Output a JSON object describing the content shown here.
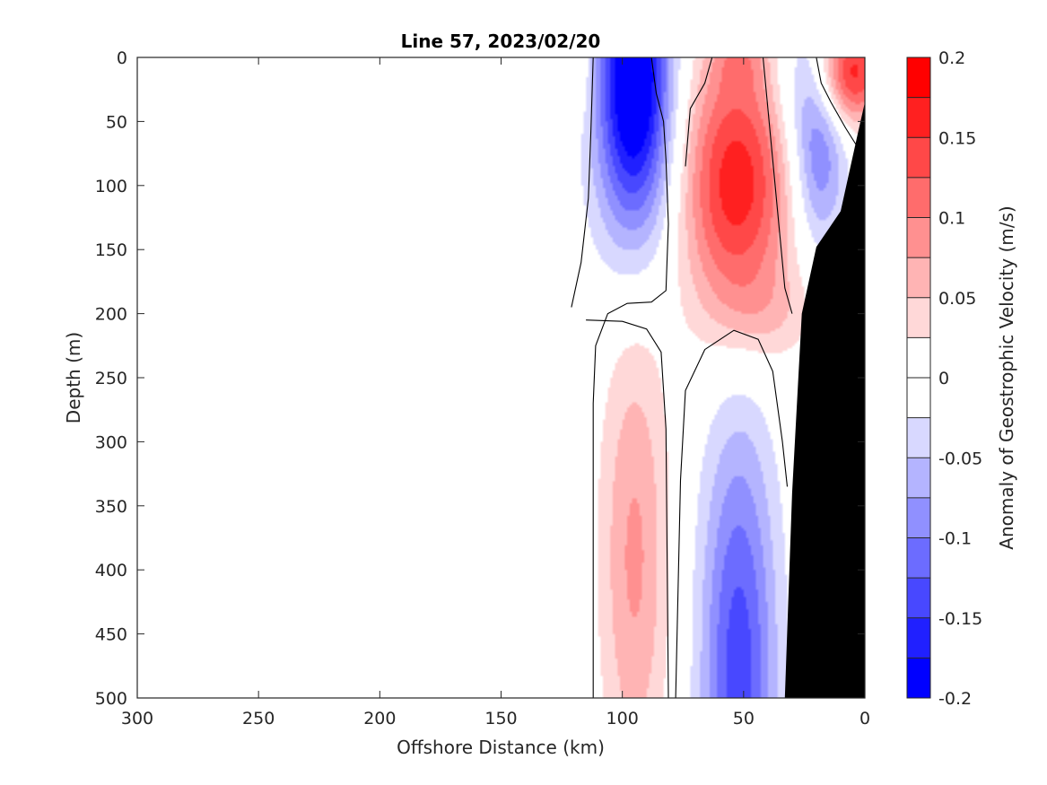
{
  "chart_data": {
    "type": "contour",
    "title": "Line 57, 2023/02/20",
    "xlabel": "Offshore Distance (km)",
    "ylabel": "Depth (m)",
    "xlim": [
      300,
      0
    ],
    "ylim": [
      500,
      0
    ],
    "x_reversed": true,
    "y_reversed": true,
    "x_ticks": [
      300,
      250,
      200,
      150,
      100,
      50,
      0
    ],
    "y_ticks": [
      0,
      50,
      100,
      150,
      200,
      250,
      300,
      350,
      400,
      450,
      500
    ],
    "colorbar": {
      "label": "Anomaly of Geostrophic Velocity (m/s)",
      "range": [
        -0.2,
        0.2
      ],
      "tick_values": [
        0.2,
        0.15,
        0.1,
        0.05,
        0,
        -0.05,
        -0.1,
        -0.15,
        -0.2
      ],
      "tick_labels": [
        "0.2",
        "0.15",
        "0.1",
        "0.05",
        "0",
        "-0.05",
        "-0.1",
        "-0.15",
        "-0.2"
      ],
      "levels": [
        -0.2,
        -0.175,
        -0.15,
        -0.125,
        -0.1,
        -0.075,
        -0.05,
        -0.025,
        0,
        0.025,
        0.05,
        0.075,
        0.1,
        0.125,
        0.15,
        0.175,
        0.2
      ],
      "colors": [
        "#0000ff",
        "#2020ff",
        "#4848ff",
        "#6c6cff",
        "#9090ff",
        "#b4b4ff",
        "#d8d8ff",
        "#ffffff",
        "#ffffff",
        "#ffd8d8",
        "#ffb4b4",
        "#ff9090",
        "#ff6c6c",
        "#ff4848",
        "#ff2020",
        "#ff0000"
      ]
    },
    "features": [
      {
        "sign": "neg",
        "x": 95,
        "y": 0,
        "sx": 10,
        "sy": 75,
        "v": -0.18
      },
      {
        "sign": "neg",
        "x": 95,
        "y": 70,
        "sx": 13,
        "sy": 75,
        "v": -0.08
      },
      {
        "sign": "pos",
        "x": 53,
        "y": 100,
        "sx": 16,
        "sy": 75,
        "v": 0.17
      },
      {
        "sign": "pos",
        "x": 52,
        "y": 0,
        "sx": 8,
        "sy": 18,
        "v": 0.04
      },
      {
        "sign": "pos",
        "x": 5,
        "y": 12,
        "sx": 9,
        "sy": 28,
        "v": 0.16
      },
      {
        "sign": "neg",
        "x": 19,
        "y": 80,
        "sx": 8,
        "sy": 50,
        "v": -0.1
      },
      {
        "sign": "neg",
        "x": 28,
        "y": 20,
        "sx": 8,
        "sy": 40,
        "v": -0.04
      },
      {
        "sign": "pos",
        "x": 117,
        "y": 10,
        "sx": 3,
        "sy": 30,
        "v": 0.03
      },
      {
        "sign": "pos",
        "x": 95,
        "y": 390,
        "sx": 10,
        "sy": 130,
        "v": 0.08
      },
      {
        "sign": "neg",
        "x": 52,
        "y": 480,
        "sx": 11,
        "sy": 140,
        "v": -0.14
      },
      {
        "sign": "pos",
        "x": 40,
        "y": 200,
        "sx": 15,
        "sy": 25,
        "v": 0.03
      },
      {
        "sign": "neg",
        "x": 118,
        "y": 470,
        "sx": 2,
        "sy": 50,
        "v": -0.03
      }
    ],
    "zero_contours": [
      [
        [
          121,
          195
        ],
        [
          117,
          160
        ],
        [
          114,
          110
        ],
        [
          113,
          60
        ],
        [
          112,
          0
        ]
      ],
      [
        [
          112,
          500
        ],
        [
          112,
          270
        ],
        [
          111,
          225
        ],
        [
          106,
          200
        ],
        [
          98,
          192
        ],
        [
          88,
          191
        ],
        [
          82,
          182
        ],
        [
          81,
          130
        ],
        [
          82,
          80
        ],
        [
          83,
          50
        ],
        [
          86,
          28
        ],
        [
          88,
          0
        ]
      ],
      [
        [
          81,
          500
        ],
        [
          82,
          290
        ],
        [
          84,
          230
        ],
        [
          90,
          212
        ],
        [
          100,
          206
        ],
        [
          115,
          205
        ]
      ],
      [
        [
          78,
          500
        ],
        [
          76,
          330
        ],
        [
          74,
          260
        ],
        [
          66,
          228
        ],
        [
          54,
          213
        ],
        [
          44,
          220
        ],
        [
          38,
          245
        ],
        [
          34,
          300
        ],
        [
          32,
          335
        ]
      ],
      [
        [
          74,
          85
        ],
        [
          72,
          40
        ],
        [
          66,
          20
        ],
        [
          63,
          0
        ]
      ],
      [
        [
          42,
          0
        ],
        [
          40,
          40
        ],
        [
          36,
          120
        ],
        [
          33,
          180
        ],
        [
          30,
          200
        ]
      ],
      [
        [
          20,
          0
        ],
        [
          18,
          20
        ],
        [
          14,
          35
        ],
        [
          8,
          55
        ],
        [
          3,
          70
        ]
      ]
    ],
    "bathymetry": [
      [
        33,
        500
      ],
      [
        30,
        340
      ],
      [
        26,
        200
      ],
      [
        20,
        148
      ],
      [
        10,
        120
      ],
      [
        3,
        60
      ],
      [
        0,
        35
      ]
    ]
  }
}
